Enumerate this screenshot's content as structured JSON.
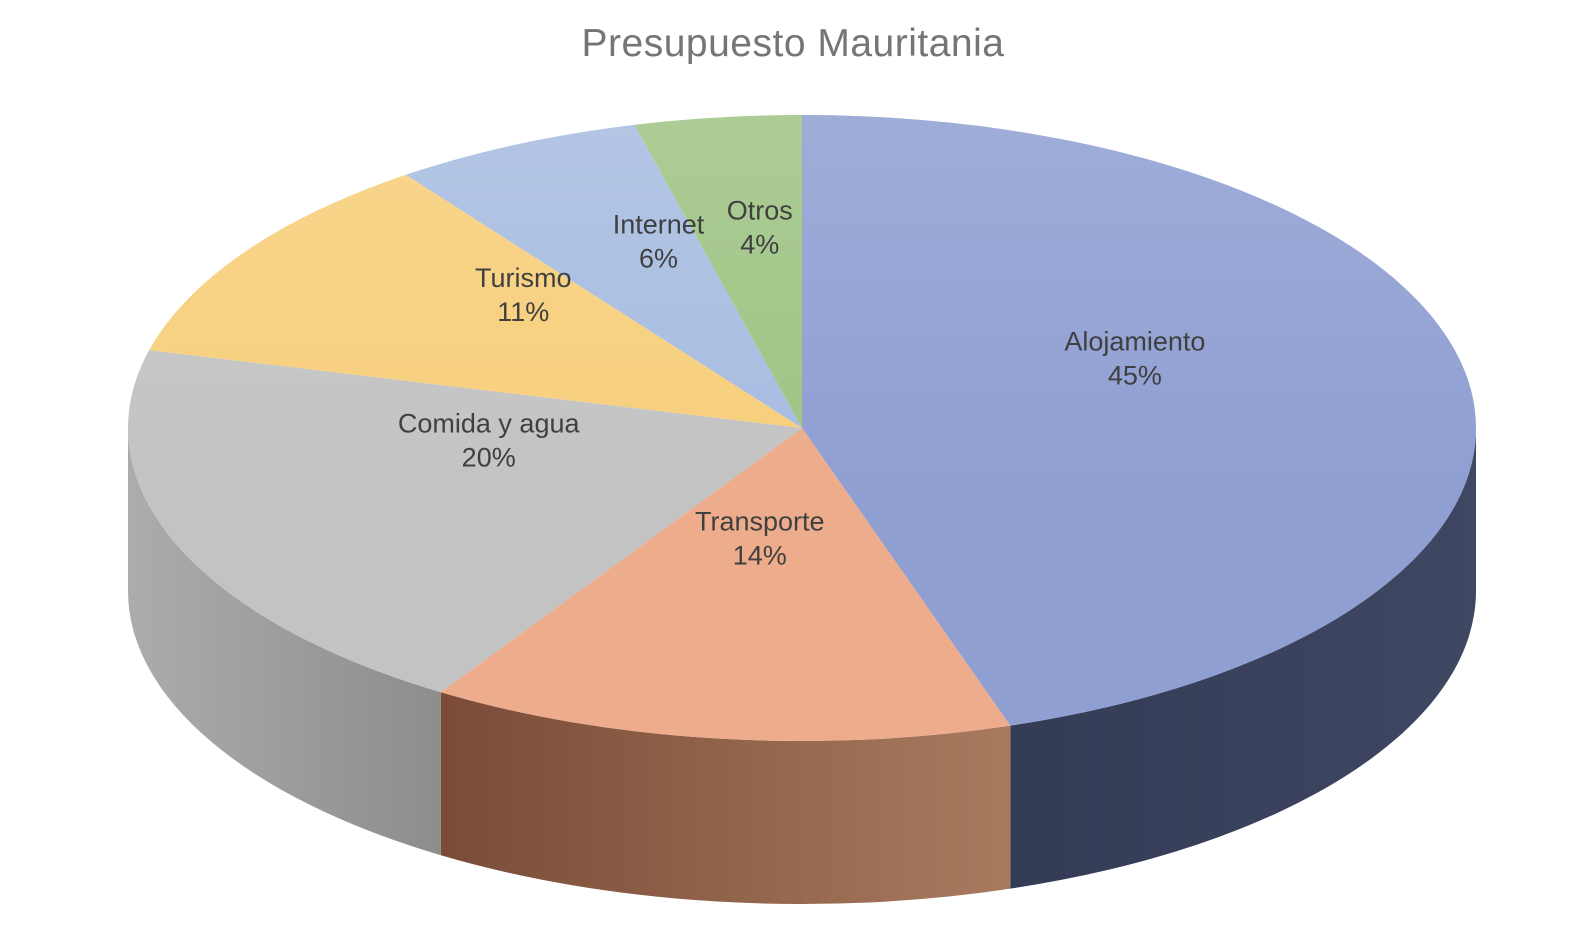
{
  "title": "Presupuesto Mauritania",
  "background": "#FFFFFF",
  "chart_data": {
    "type": "pie",
    "style": "3d",
    "title": "Presupuesto Mauritania",
    "title_color": "#757575",
    "label_color": "#404040",
    "start_angle_deg": 0,
    "direction": "clockwise",
    "legend": "none",
    "slices": [
      {
        "label": "Alojamiento",
        "value": 45,
        "display": "45%",
        "color": "#8F9FD2",
        "wall_color_left": "#333B55",
        "wall_color_right": "#3F4763"
      },
      {
        "label": "Transporte",
        "value": 14,
        "display": "14%",
        "color": "#EDAC8B",
        "wall_color_left": "#7A4C38",
        "wall_color_right": "#A87A5E"
      },
      {
        "label": "Comida y agua",
        "value": 20,
        "display": "20%",
        "color": "#C3C3C3",
        "wall_color_left": "#ACACAC",
        "wall_color_right": "#8D8D8D"
      },
      {
        "label": "Turismo",
        "value": 11,
        "display": "11%",
        "color": "#F7CF7B",
        "wall_color_left": "#C29545",
        "wall_color_right": "#C29545"
      },
      {
        "label": "Internet",
        "value": 6,
        "display": "6%",
        "color": "#A6BCE1",
        "wall_color_left": "#62799F",
        "wall_color_right": "#62799F"
      },
      {
        "label": "Otros",
        "value": 4,
        "display": "4%",
        "color": "#9EC484",
        "wall_color_left": "#648A48",
        "wall_color_right": "#648A48"
      }
    ]
  }
}
